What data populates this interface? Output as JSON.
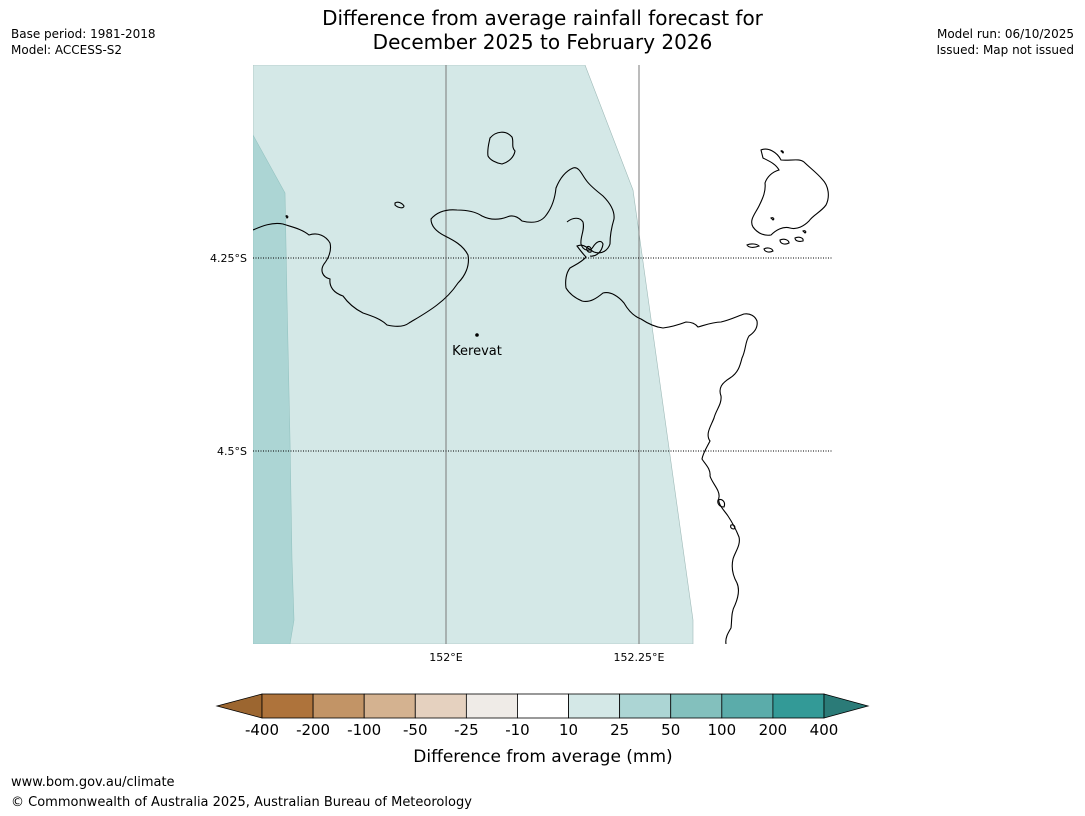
{
  "title": "Difference from average rainfall forecast for\nDecember 2025 to February 2026",
  "meta_left": {
    "base_period": "Base period: 1981-2018",
    "model": "Model: ACCESS-S2"
  },
  "meta_right": {
    "model_run": "Model run: 06/10/2025",
    "issued": "Issued: Map not issued"
  },
  "map": {
    "latitude_labels": [
      "4.25°S",
      "4.5°S"
    ],
    "longitude_labels": [
      "152°E",
      "152.25°E"
    ],
    "place": {
      "name": "Kerevat"
    },
    "shading_colors": {
      "class_10_25": "#d4e8e7",
      "class_25_50": "#acd5d4",
      "land_outline": "#000000",
      "gridline": "#7a7a7a"
    }
  },
  "legend": {
    "title": "Difference from average (mm)",
    "tick_labels": [
      "-400",
      "-200",
      "-100",
      "-50",
      "-25",
      "-10",
      "10",
      "25",
      "50",
      "100",
      "200",
      "400"
    ],
    "colors": {
      "below_min": "#9c6630",
      "bins": [
        "#ae733b",
        "#c29466",
        "#d4b290",
        "#e5d1bf",
        "#efebe7",
        "#ffffff",
        "#d4e8e7",
        "#acd5d4",
        "#83c0bd",
        "#5bacaa",
        "#339a97"
      ],
      "above_max": "#2b7b78"
    }
  },
  "footer": {
    "url": "www.bom.gov.au/climate",
    "copyright": "© Commonwealth of Australia 2025, Australian Bureau of Meteorology"
  }
}
